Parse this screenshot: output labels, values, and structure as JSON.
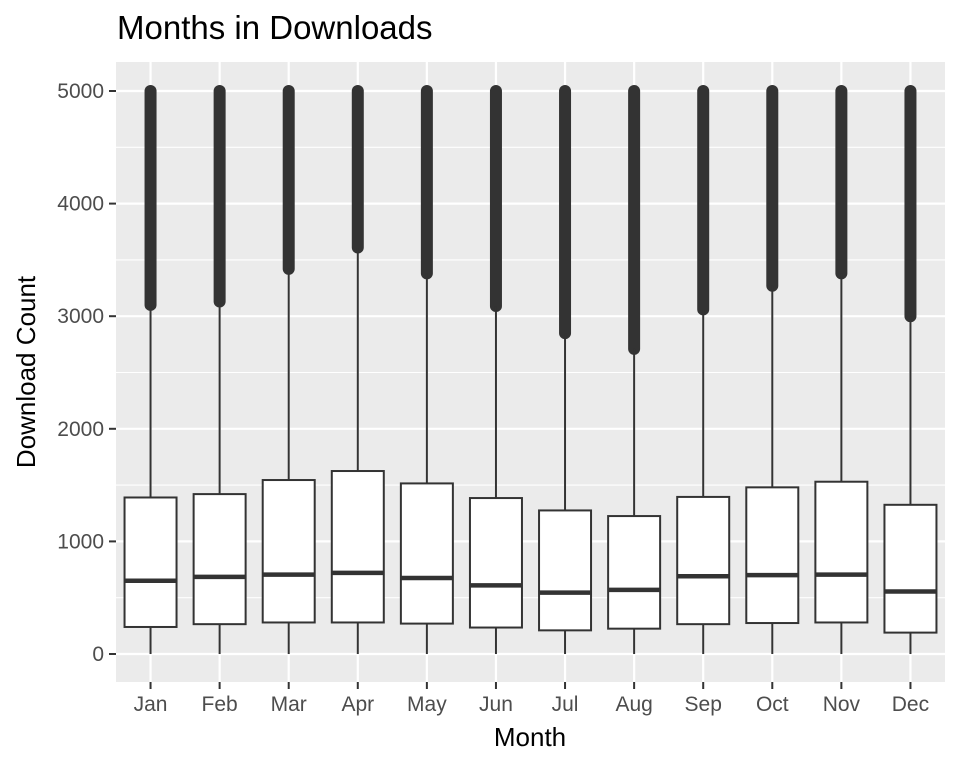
{
  "chart_data": {
    "type": "boxplot",
    "title": "Months in Downloads",
    "xlabel": "Month",
    "ylabel": "Download Count",
    "ylim": [
      -250,
      5100
    ],
    "yticks": [
      0,
      1000,
      2000,
      3000,
      4000,
      5000
    ],
    "categories": [
      "Jan",
      "Feb",
      "Mar",
      "Apr",
      "May",
      "Jun",
      "Jul",
      "Aug",
      "Sep",
      "Oct",
      "Nov",
      "Dec"
    ],
    "boxes": [
      {
        "min": 0,
        "q1": 240,
        "median": 650,
        "q3": 1390,
        "whisker_high": 3100,
        "outliers_from": 3100,
        "outliers_to": 5000
      },
      {
        "min": 0,
        "q1": 265,
        "median": 685,
        "q3": 1420,
        "whisker_high": 3130,
        "outliers_from": 3130,
        "outliers_to": 5000
      },
      {
        "min": 0,
        "q1": 280,
        "median": 705,
        "q3": 1545,
        "whisker_high": 3420,
        "outliers_from": 3420,
        "outliers_to": 5000
      },
      {
        "min": 0,
        "q1": 280,
        "median": 720,
        "q3": 1625,
        "whisker_high": 3610,
        "outliers_from": 3610,
        "outliers_to": 5000
      },
      {
        "min": 0,
        "q1": 270,
        "median": 675,
        "q3": 1515,
        "whisker_high": 3380,
        "outliers_from": 3380,
        "outliers_to": 5000
      },
      {
        "min": 0,
        "q1": 235,
        "median": 610,
        "q3": 1385,
        "whisker_high": 3090,
        "outliers_from": 3090,
        "outliers_to": 5000
      },
      {
        "min": 0,
        "q1": 210,
        "median": 545,
        "q3": 1275,
        "whisker_high": 2850,
        "outliers_from": 2850,
        "outliers_to": 5000
      },
      {
        "min": 0,
        "q1": 225,
        "median": 570,
        "q3": 1225,
        "whisker_high": 2710,
        "outliers_from": 2710,
        "outliers_to": 5000
      },
      {
        "min": 0,
        "q1": 265,
        "median": 690,
        "q3": 1395,
        "whisker_high": 3060,
        "outliers_from": 3060,
        "outliers_to": 5000
      },
      {
        "min": 0,
        "q1": 275,
        "median": 700,
        "q3": 1480,
        "whisker_high": 3270,
        "outliers_from": 3270,
        "outliers_to": 5000
      },
      {
        "min": 0,
        "q1": 280,
        "median": 705,
        "q3": 1530,
        "whisker_high": 3380,
        "outliers_from": 3380,
        "outliers_to": 5000
      },
      {
        "min": 0,
        "q1": 190,
        "median": 555,
        "q3": 1325,
        "whisker_high": 3000,
        "outliers_from": 3000,
        "outliers_to": 5000
      }
    ],
    "grid": true,
    "legend": "none",
    "colors": {
      "panel_background": "#ebebeb",
      "grid": "#ffffff",
      "box_fill": "#ffffff",
      "box_line": "#333333",
      "outlier": "#333333"
    }
  }
}
